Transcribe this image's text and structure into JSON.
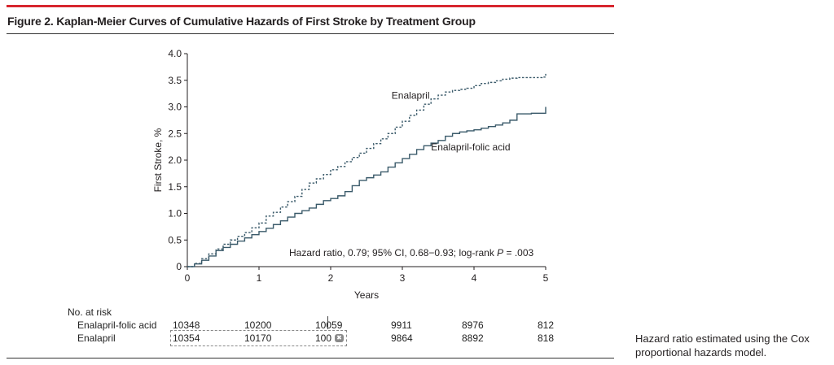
{
  "figure": {
    "title": "Figure 2. Kaplan-Meier Curves of Cumulative Hazards of First Stroke by Treatment Group",
    "accent_color": "#d7262e"
  },
  "chart_data": {
    "type": "line",
    "xlabel": "Years",
    "ylabel": "First Stroke, %",
    "xlim": [
      0,
      5
    ],
    "ylim": [
      0,
      4.0
    ],
    "x_ticks": [
      "0",
      "1",
      "2",
      "3",
      "4",
      "5"
    ],
    "y_ticks": [
      "0",
      "0.5",
      "1.0",
      "1.5",
      "2.0",
      "2.5",
      "3.0",
      "3.5",
      "4.0"
    ],
    "grid": false,
    "annotation": "Hazard ratio, 0.79; 95% CI, 0.68−0.93; log-rank P = .003",
    "series": [
      {
        "name": "Enalapril",
        "style": "dashed",
        "color": "#3a5a6a",
        "points": [
          [
            0,
            0
          ],
          [
            0.1,
            0.06
          ],
          [
            0.2,
            0.15
          ],
          [
            0.3,
            0.24
          ],
          [
            0.4,
            0.33
          ],
          [
            0.5,
            0.42
          ],
          [
            0.6,
            0.5
          ],
          [
            0.7,
            0.57
          ],
          [
            0.8,
            0.64
          ],
          [
            0.9,
            0.73
          ],
          [
            1.0,
            0.82
          ],
          [
            1.1,
            0.95
          ],
          [
            1.2,
            1.02
          ],
          [
            1.3,
            1.12
          ],
          [
            1.4,
            1.22
          ],
          [
            1.5,
            1.32
          ],
          [
            1.6,
            1.45
          ],
          [
            1.7,
            1.57
          ],
          [
            1.8,
            1.65
          ],
          [
            1.9,
            1.73
          ],
          [
            2.0,
            1.82
          ],
          [
            2.1,
            1.88
          ],
          [
            2.2,
            1.97
          ],
          [
            2.3,
            2.05
          ],
          [
            2.4,
            2.13
          ],
          [
            2.5,
            2.22
          ],
          [
            2.6,
            2.31
          ],
          [
            2.7,
            2.4
          ],
          [
            2.8,
            2.5
          ],
          [
            2.9,
            2.62
          ],
          [
            3.0,
            2.73
          ],
          [
            3.1,
            2.84
          ],
          [
            3.2,
            2.94
          ],
          [
            3.3,
            3.05
          ],
          [
            3.4,
            3.15
          ],
          [
            3.5,
            3.22
          ],
          [
            3.6,
            3.28
          ],
          [
            3.7,
            3.31
          ],
          [
            3.8,
            3.33
          ],
          [
            3.9,
            3.35
          ],
          [
            4.0,
            3.4
          ],
          [
            4.1,
            3.44
          ],
          [
            4.2,
            3.46
          ],
          [
            4.3,
            3.49
          ],
          [
            4.4,
            3.52
          ],
          [
            4.5,
            3.54
          ],
          [
            4.6,
            3.55
          ],
          [
            4.8,
            3.55
          ],
          [
            4.95,
            3.56
          ],
          [
            5.0,
            3.62
          ]
        ]
      },
      {
        "name": "Enalapril-folic acid",
        "style": "solid",
        "color": "#3a5a6a",
        "points": [
          [
            0,
            0
          ],
          [
            0.1,
            0.05
          ],
          [
            0.2,
            0.12
          ],
          [
            0.3,
            0.2
          ],
          [
            0.4,
            0.3
          ],
          [
            0.5,
            0.36
          ],
          [
            0.6,
            0.42
          ],
          [
            0.7,
            0.48
          ],
          [
            0.8,
            0.54
          ],
          [
            0.9,
            0.6
          ],
          [
            1.0,
            0.66
          ],
          [
            1.1,
            0.72
          ],
          [
            1.2,
            0.79
          ],
          [
            1.3,
            0.86
          ],
          [
            1.4,
            0.93
          ],
          [
            1.5,
            1.0
          ],
          [
            1.6,
            1.05
          ],
          [
            1.7,
            1.1
          ],
          [
            1.8,
            1.17
          ],
          [
            1.9,
            1.24
          ],
          [
            2.0,
            1.28
          ],
          [
            2.1,
            1.33
          ],
          [
            2.2,
            1.41
          ],
          [
            2.3,
            1.52
          ],
          [
            2.4,
            1.62
          ],
          [
            2.5,
            1.67
          ],
          [
            2.6,
            1.72
          ],
          [
            2.7,
            1.78
          ],
          [
            2.8,
            1.87
          ],
          [
            2.9,
            1.95
          ],
          [
            3.0,
            2.03
          ],
          [
            3.1,
            2.11
          ],
          [
            3.2,
            2.2
          ],
          [
            3.3,
            2.27
          ],
          [
            3.4,
            2.32
          ],
          [
            3.5,
            2.37
          ],
          [
            3.6,
            2.45
          ],
          [
            3.7,
            2.5
          ],
          [
            3.8,
            2.53
          ],
          [
            3.9,
            2.55
          ],
          [
            4.0,
            2.57
          ],
          [
            4.1,
            2.6
          ],
          [
            4.2,
            2.63
          ],
          [
            4.3,
            2.66
          ],
          [
            4.4,
            2.7
          ],
          [
            4.5,
            2.75
          ],
          [
            4.6,
            2.87
          ],
          [
            4.8,
            2.88
          ],
          [
            4.95,
            2.88
          ],
          [
            5.0,
            3.0
          ]
        ]
      }
    ],
    "labels": [
      {
        "text": "Enalapril",
        "x": 2.85,
        "y": 3.15
      },
      {
        "text": "Enalapril-folic acid",
        "x": 3.4,
        "y": 2.18
      }
    ]
  },
  "risk_table": {
    "header": "No. at risk",
    "rows": [
      {
        "label": "Enalapril-folic acid",
        "values": [
          "10348",
          "10200",
          "10059",
          "9911",
          "8976",
          "812"
        ]
      },
      {
        "label": "Enalapril",
        "values": [
          "10354",
          "10170",
          "100",
          "9864",
          "8892",
          "818"
        ]
      }
    ]
  },
  "footnote": "Hazard ratio estimated using the Cox proportional hazards model."
}
